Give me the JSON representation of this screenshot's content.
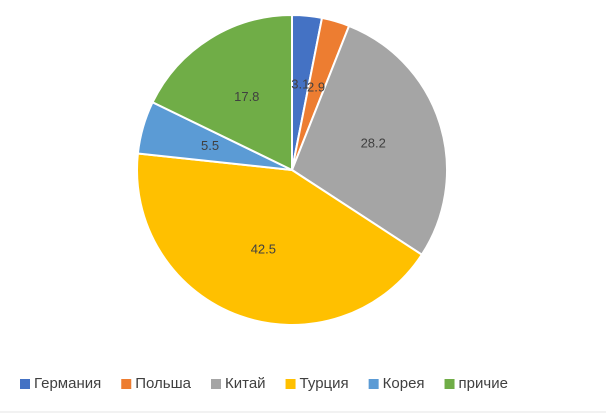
{
  "chart_data": {
    "type": "pie",
    "categories": [
      "Германия",
      "Польша",
      "Китай",
      "Турция",
      "Корея",
      "причие"
    ],
    "values": [
      3.1,
      2.9,
      28.2,
      42.5,
      5.5,
      17.8
    ],
    "colors": [
      "#4472c4",
      "#ed7d31",
      "#a5a5a5",
      "#ffc000",
      "#5b9bd5",
      "#70ad47"
    ],
    "legend": "bottom"
  }
}
